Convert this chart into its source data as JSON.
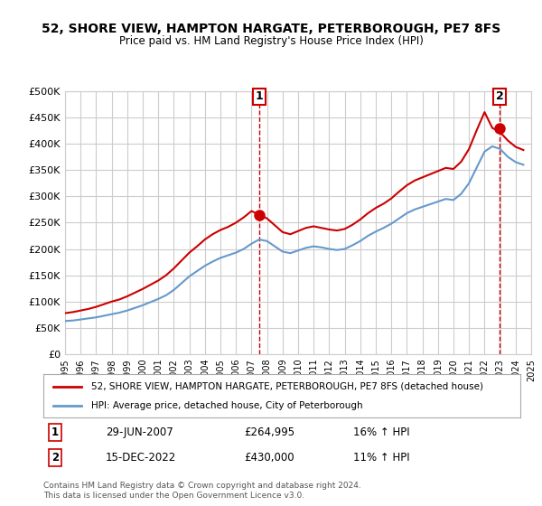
{
  "title": "52, SHORE VIEW, HAMPTON HARGATE, PETERBOROUGH, PE7 8FS",
  "subtitle": "Price paid vs. HM Land Registry's House Price Index (HPI)",
  "property_label": "52, SHORE VIEW, HAMPTON HARGATE, PETERBOROUGH, PE7 8FS (detached house)",
  "hpi_label": "HPI: Average price, detached house, City of Peterborough",
  "annotation1_label": "1",
  "annotation1_date": "29-JUN-2007",
  "annotation1_price": "£264,995",
  "annotation1_hpi": "16% ↑ HPI",
  "annotation2_label": "2",
  "annotation2_date": "15-DEC-2022",
  "annotation2_price": "£430,000",
  "annotation2_hpi": "11% ↑ HPI",
  "footer": "Contains HM Land Registry data © Crown copyright and database right 2024.\nThis data is licensed under the Open Government Licence v3.0.",
  "property_color": "#cc0000",
  "hpi_color": "#6699cc",
  "annotation_color": "#cc0000",
  "grid_color": "#cccccc",
  "background_color": "#ffffff",
  "ylim": [
    0,
    500000
  ],
  "yticks": [
    0,
    50000,
    100000,
    150000,
    200000,
    250000,
    300000,
    350000,
    400000,
    450000,
    500000
  ],
  "sale1_year": 2007.5,
  "sale1_value": 264995,
  "sale2_year": 2022.96,
  "sale2_value": 430000,
  "hpi_years": [
    1995,
    1995.5,
    1996,
    1996.5,
    1997,
    1997.5,
    1998,
    1998.5,
    1999,
    1999.5,
    2000,
    2000.5,
    2001,
    2001.5,
    2002,
    2002.5,
    2003,
    2003.5,
    2004,
    2004.5,
    2005,
    2005.5,
    2006,
    2006.5,
    2007,
    2007.5,
    2008,
    2008.5,
    2009,
    2009.5,
    2010,
    2010.5,
    2011,
    2011.5,
    2012,
    2012.5,
    2013,
    2013.5,
    2014,
    2014.5,
    2015,
    2015.5,
    2016,
    2016.5,
    2017,
    2017.5,
    2018,
    2018.5,
    2019,
    2019.5,
    2020,
    2020.5,
    2021,
    2021.5,
    2022,
    2022.5,
    2023,
    2023.5,
    2024,
    2024.5
  ],
  "hpi_values": [
    63000,
    64000,
    66000,
    68000,
    70000,
    73000,
    76000,
    79000,
    83000,
    88000,
    93000,
    99000,
    105000,
    112000,
    122000,
    135000,
    148000,
    158000,
    168000,
    176000,
    183000,
    188000,
    193000,
    200000,
    210000,
    218000,
    215000,
    205000,
    195000,
    192000,
    197000,
    202000,
    205000,
    203000,
    200000,
    198000,
    200000,
    207000,
    215000,
    225000,
    233000,
    240000,
    248000,
    258000,
    268000,
    275000,
    280000,
    285000,
    290000,
    295000,
    293000,
    305000,
    325000,
    355000,
    385000,
    395000,
    390000,
    375000,
    365000,
    360000
  ],
  "property_years": [
    1995,
    1995.5,
    1996,
    1996.5,
    1997,
    1997.5,
    1998,
    1998.5,
    1999,
    1999.5,
    2000,
    2000.5,
    2001,
    2001.5,
    2002,
    2002.5,
    2003,
    2003.5,
    2004,
    2004.5,
    2005,
    2005.5,
    2006,
    2006.5,
    2007,
    2007.5,
    2008,
    2008.5,
    2009,
    2009.5,
    2010,
    2010.5,
    2011,
    2011.5,
    2012,
    2012.5,
    2013,
    2013.5,
    2014,
    2014.5,
    2015,
    2015.5,
    2016,
    2016.5,
    2017,
    2017.5,
    2018,
    2018.5,
    2019,
    2019.5,
    2020,
    2020.5,
    2021,
    2021.5,
    2022,
    2022.5,
    2023,
    2023.5,
    2024,
    2024.5
  ],
  "property_values": [
    78000,
    80000,
    83000,
    86000,
    90000,
    95000,
    100000,
    104000,
    110000,
    117000,
    124000,
    132000,
    140000,
    150000,
    163000,
    178000,
    193000,
    205000,
    218000,
    228000,
    236000,
    242000,
    250000,
    260000,
    272000,
    264995,
    258000,
    245000,
    232000,
    228000,
    234000,
    240000,
    243000,
    240000,
    237000,
    235000,
    238000,
    246000,
    256000,
    268000,
    278000,
    286000,
    296000,
    309000,
    321000,
    330000,
    336000,
    342000,
    348000,
    354000,
    352000,
    366000,
    390000,
    426000,
    460000,
    430000,
    422000,
    406000,
    394000,
    388000
  ]
}
